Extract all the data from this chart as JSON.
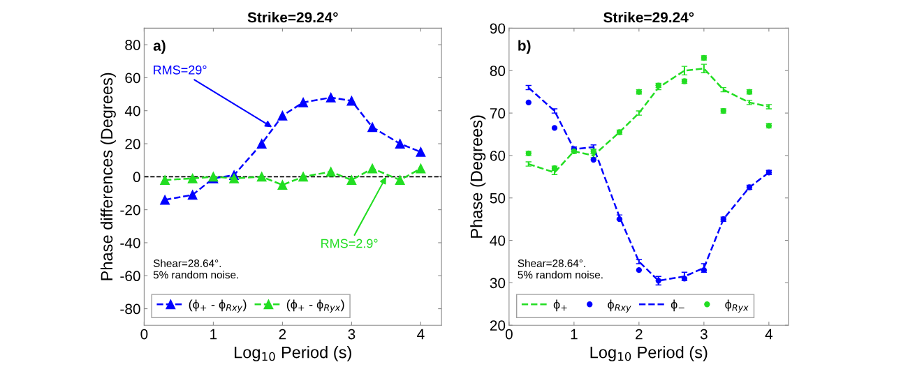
{
  "chart_data": [
    {
      "type": "line",
      "title": "Strike=29.24°",
      "xlabel": "Log$_{10}$ Period (s)",
      "ylabel": "Phase differences (Degrees)",
      "x": [
        0.3,
        0.7,
        1.0,
        1.3,
        1.7,
        2.0,
        2.3,
        2.7,
        3.0,
        3.3,
        3.7,
        4.0
      ],
      "series": [
        {
          "name": "(ϕ$_{+}$ - ϕ$_{Rxy}$)",
          "color": "#0000ff",
          "marker": "triangle",
          "line_style": "dashed",
          "values": [
            -14,
            -11,
            -1,
            1,
            20,
            37,
            45,
            48,
            46,
            30,
            20,
            15
          ]
        },
        {
          "name": "(ϕ$_{+}$ - ϕ$_{Ryx}$)",
          "color": "#22dd22",
          "marker": "triangle",
          "line_style": "dashed",
          "values": [
            -2,
            -1,
            0,
            -1,
            0,
            -5,
            0,
            3,
            -2,
            5,
            -2,
            5
          ]
        }
      ],
      "xlim": [
        0,
        4.3
      ],
      "xticks": [
        0,
        1,
        2,
        3,
        4
      ],
      "ylim": [
        -90,
        90
      ],
      "yticks": [
        -80,
        -60,
        -40,
        -20,
        0,
        20,
        40,
        60,
        80
      ],
      "ref_lines": [
        {
          "axis": "y",
          "value": 0,
          "color": "#000000",
          "line_style": "dashed"
        }
      ],
      "annotations": [
        "a)",
        "Shear=28.64°.\n5% random noise.",
        {
          "text": "RMS=29°",
          "x": 1.85,
          "y": 30
        },
        {
          "text": "RMS=2.9°",
          "x": 3.5,
          "y": 0
        }
      ],
      "legend": "bottom left",
      "grid": false
    },
    {
      "type": "line",
      "title": "Strike=29.24°",
      "xlabel": "Log$_{10}$ Period (s)",
      "ylabel": "Phase (Degrees)",
      "x": [
        0.3,
        0.7,
        1.0,
        1.3,
        1.7,
        2.0,
        2.3,
        2.7,
        3.0,
        3.3,
        3.7,
        4.0
      ],
      "series": [
        {
          "name": "ϕ$_{+}$",
          "type": "line",
          "color": "#22dd22",
          "marker": "none",
          "line_style": "dashed",
          "values": [
            58,
            56,
            61,
            60,
            65.5,
            70,
            76,
            80,
            80.5,
            75.5,
            72.5,
            71.5
          ],
          "errors": [
            0.5,
            0.5,
            0.5,
            0.5,
            0.5,
            0.5,
            0.5,
            1,
            1,
            0.5,
            0.5,
            0.5
          ]
        },
        {
          "name": "ϕ$_{Rxy}$",
          "type": "scatter",
          "color": "#0000ff",
          "marker": "circle",
          "values": [
            72.5,
            66.5,
            61.5,
            59,
            45,
            33,
            30.5,
            31,
            33,
            45,
            52.5,
            56
          ]
        },
        {
          "name": "ϕ$_{−}$",
          "type": "line",
          "color": "#0000ff",
          "marker": "none",
          "line_style": "dashed",
          "values": [
            76,
            70.5,
            61.5,
            62,
            45.5,
            35,
            30.5,
            31.5,
            33.5,
            45,
            52.5,
            56
          ],
          "errors": [
            0.5,
            0.5,
            0.5,
            0.5,
            0.5,
            0.5,
            1,
            1,
            1,
            0.5,
            0.5,
            0.5
          ]
        },
        {
          "name": "ϕ$_{Ryx}$",
          "type": "scatter",
          "color": "#22dd22",
          "marker": "circle",
          "values": [
            60.5,
            57,
            61,
            61,
            65.5,
            75,
            76.5,
            77.5,
            83,
            70.5,
            75,
            67
          ],
          "errors": [
            0.5,
            0.5,
            null,
            0.5,
            null,
            0.5,
            0.5,
            0.5,
            0.5,
            0.5,
            0.5,
            0.5
          ]
        }
      ],
      "xlim": [
        0,
        4.3
      ],
      "xticks": [
        0,
        1,
        2,
        3,
        4
      ],
      "ylim": [
        20,
        90
      ],
      "yticks": [
        20,
        30,
        40,
        50,
        60,
        70,
        80,
        90
      ],
      "annotations": [
        "b)",
        "Shear=28.64°.\n5% random noise."
      ],
      "legend": "bottom left",
      "grid": false
    }
  ]
}
